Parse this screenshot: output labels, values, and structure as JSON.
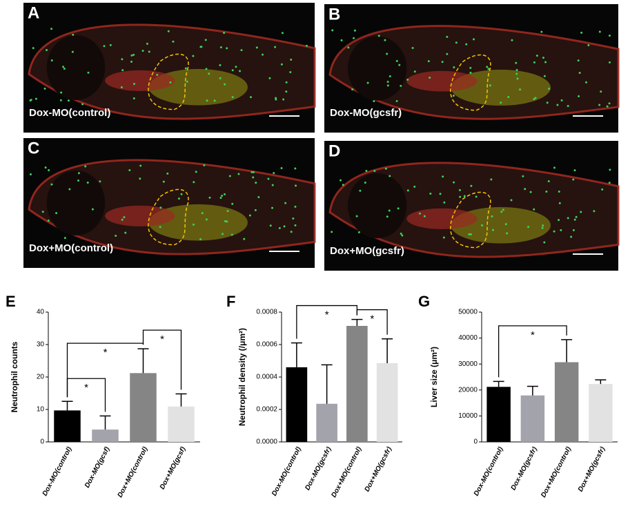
{
  "image_panels": [
    {
      "letter": "A",
      "label": "Dox-MO(control)"
    },
    {
      "letter": "B",
      "label": "Dox-MO(gcsfr)"
    },
    {
      "letter": "C",
      "label": "Dox+MO(control)"
    },
    {
      "letter": "D",
      "label": "Dox+MO(gcsfr)"
    }
  ],
  "chart_data": [
    {
      "type": "bar",
      "panel_label": "E",
      "ylabel": "Neutrophil counts",
      "categories": [
        "Dox-MO(control)",
        "Dox-MO(gcsf)",
        "Dox+MO(control)",
        "Dox+MO(gcsf)"
      ],
      "values": [
        9.7,
        3.8,
        21.2,
        10.9
      ],
      "errors": [
        2.8,
        4.2,
        7.5,
        3.9
      ],
      "colors": [
        "#000000",
        "#a3a3ab",
        "#858585",
        "#e2e2e2"
      ],
      "ylim": [
        0,
        40
      ],
      "yticks": [
        0,
        10,
        20,
        30,
        40
      ],
      "annotations": [
        "*",
        "*",
        "*"
      ]
    },
    {
      "type": "bar",
      "panel_label": "F",
      "ylabel": "Neutrophil density (/μm²)",
      "categories": [
        "Dox-MO(control)",
        "Dox-MO(gcsfr)",
        "Dox+MO(control)",
        "Dox+MO(gcsfr)"
      ],
      "values": [
        0.00046,
        0.000235,
        0.000715,
        0.000485
      ],
      "errors": [
        0.00015,
        0.00024,
        4e-05,
        0.00015
      ],
      "colors": [
        "#000000",
        "#a3a3ab",
        "#858585",
        "#e2e2e2"
      ],
      "ylim": [
        0,
        0.0008
      ],
      "yticks": [
        {
          "value": 0,
          "label": "0.0000"
        },
        {
          "value": 0.0002,
          "label": "0.0002"
        },
        {
          "value": 0.0004,
          "label": "0.0004"
        },
        {
          "value": 0.0006,
          "label": "0.0006"
        },
        {
          "value": 0.0008,
          "label": "0.0008"
        }
      ],
      "annotations": [
        "*",
        "*"
      ]
    },
    {
      "type": "bar",
      "panel_label": "G",
      "ylabel": "Liver size (μm²)",
      "categories": [
        "Dox-MO(control)",
        "Dox-MO(gcsfr)",
        "Dox+MO(control)",
        "Dox+MO(gcsfr)"
      ],
      "values": [
        21200,
        17900,
        30700,
        22300
      ],
      "errors": [
        2100,
        3500,
        8700,
        1600
      ],
      "colors": [
        "#000000",
        "#a3a3ab",
        "#858585",
        "#e2e2e2"
      ],
      "ylim": [
        0,
        50000
      ],
      "yticks": [
        0,
        10000,
        20000,
        30000,
        40000,
        50000
      ],
      "annotations": [
        "*"
      ]
    }
  ]
}
